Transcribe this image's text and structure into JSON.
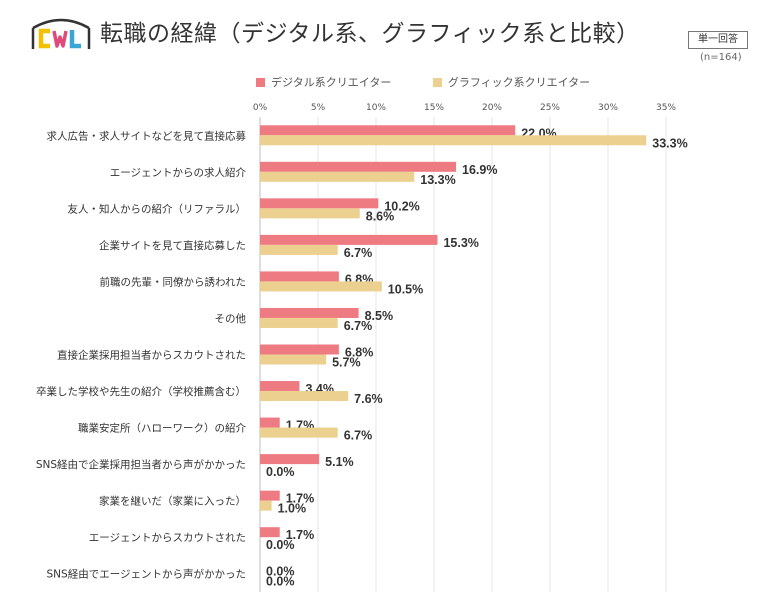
{
  "header": {
    "logo_text": "CWL",
    "title": "転職の経緯（デジタル系、グラフィック系と比較）",
    "badge": "単一回答",
    "sample": "(n=164)"
  },
  "colors": {
    "digital": "#ee7a82",
    "graphic": "#ecd08f",
    "grid": "#e4e4e4"
  },
  "chart_data": {
    "type": "bar",
    "orientation": "horizontal",
    "title": "転職の経緯（デジタル系、グラフィック系と比較）",
    "xlim": [
      0,
      35
    ],
    "x_ticks": [
      "0%",
      "5%",
      "10%",
      "15%",
      "20%",
      "25%",
      "30%",
      "35%"
    ],
    "legend_position": "top",
    "grid": true,
    "categories": [
      "求人広告・求人サイトなどを見て直接応募",
      "エージェントからの求人紹介",
      "友人・知人からの紹介（リファラル）",
      "企業サイトを見て直接応募した",
      "前職の先輩・同僚から誘われた",
      "その他",
      "直接企業採用担当者からスカウトされた",
      "卒業した学校や先生の紹介（学校推薦含む）",
      "職業安定所（ハローワーク）の紹介",
      "SNS経由で企業採用担当者から声がかかった",
      "家業を継いだ（家業に入った）",
      "エージェントからスカウトされた",
      "SNS経由でエージェントから声がかかった"
    ],
    "series": [
      {
        "name": "デジタル系クリエイター",
        "values": [
          22.0,
          16.9,
          10.2,
          15.3,
          6.8,
          8.5,
          6.8,
          3.4,
          1.7,
          5.1,
          1.7,
          1.7,
          0.0
        ],
        "labels": [
          "22.0%",
          "16.9%",
          "10.2%",
          "15.3%",
          "6.8%",
          "8.5%",
          "6.8%",
          "3.4%",
          "1.7%",
          "5.1%",
          "1.7%",
          "1.7%",
          "0.0%"
        ]
      },
      {
        "name": "グラフィック系クリエイター",
        "values": [
          33.3,
          13.3,
          8.6,
          6.7,
          10.5,
          6.7,
          5.7,
          7.6,
          6.7,
          0.0,
          1.0,
          0.0,
          0.0
        ],
        "labels": [
          "33.3%",
          "13.3%",
          "8.6%",
          "6.7%",
          "10.5%",
          "6.7%",
          "5.7%",
          "7.6%",
          "6.7%",
          "0.0%",
          "1.0%",
          "0.0%",
          "0.0%"
        ]
      }
    ]
  }
}
